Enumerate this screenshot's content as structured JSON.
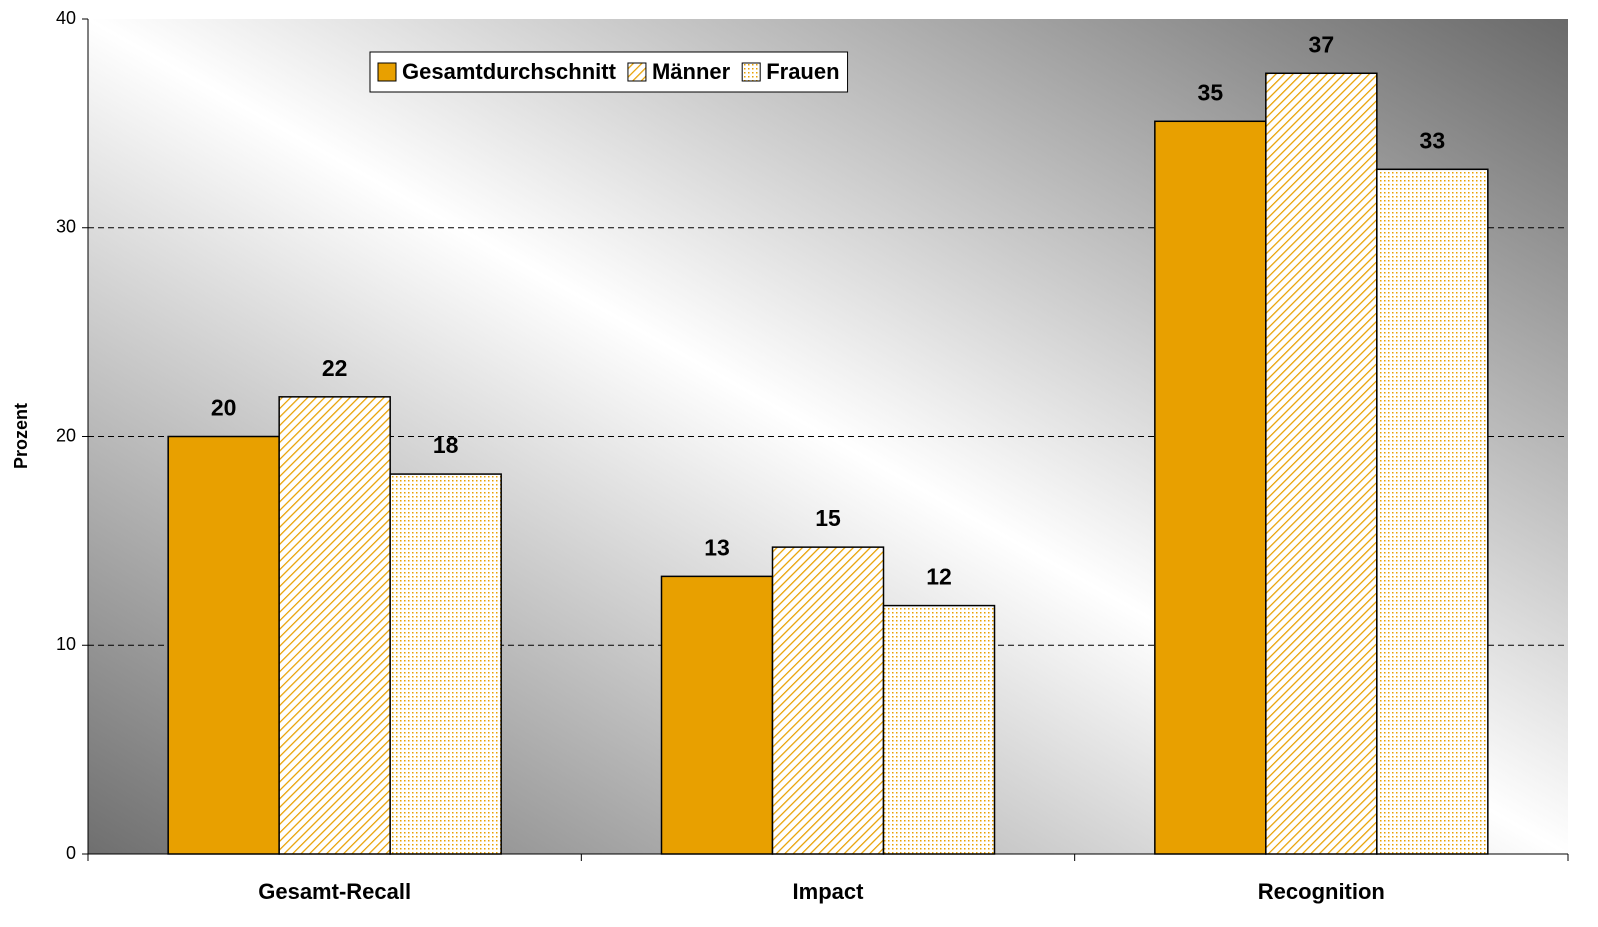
{
  "chart_data": {
    "type": "bar",
    "y_label": "Prozent",
    "categories": [
      "Gesamt-Recall",
      "Impact",
      "Recognition"
    ],
    "series": [
      {
        "name": "Gesamtdurchschnitt",
        "color": "#e8a000",
        "fill": "solid",
        "values": [
          20.0,
          13.3,
          35.1
        ],
        "value_labels": [
          "20",
          "13",
          "35"
        ]
      },
      {
        "name": "Männer",
        "color": "#e8a000",
        "fill": "hatch",
        "values": [
          21.9,
          14.7,
          37.4
        ],
        "value_labels": [
          "22",
          "15",
          "37"
        ]
      },
      {
        "name": "Frauen",
        "color": "#e8a000",
        "fill": "dots",
        "values": [
          18.2,
          11.9,
          32.8
        ],
        "value_labels": [
          "18",
          "12",
          "33"
        ]
      }
    ],
    "ylim": [
      0,
      40
    ],
    "yticks": [
      0,
      10,
      20,
      30,
      40
    ],
    "grid": true,
    "legend": "top-left"
  }
}
